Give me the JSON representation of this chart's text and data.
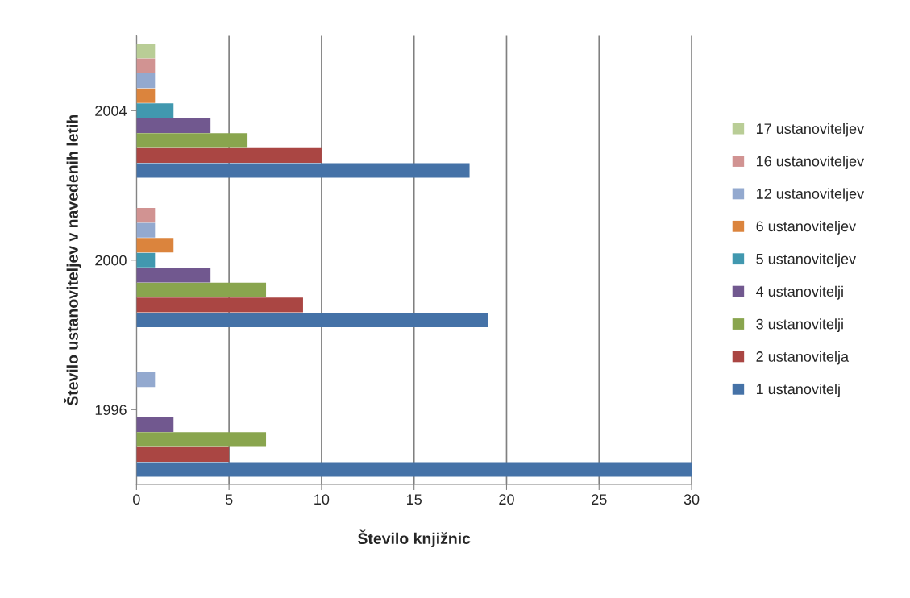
{
  "chart_data": {
    "type": "bar",
    "orientation": "horizontal",
    "xlabel": "Število knjižnic",
    "ylabel": "Število ustanoviteljev v navedenih letih",
    "categories": [
      "2004",
      "2000",
      "1996"
    ],
    "xlim": [
      0,
      30
    ],
    "xticks": [
      0,
      5,
      10,
      15,
      20,
      25,
      30
    ],
    "grid": "x",
    "legend": "right",
    "series": [
      {
        "name": "1 ustanovitelj",
        "color": "#4572a7",
        "values": [
          18,
          19,
          30
        ]
      },
      {
        "name": "2 ustanovitelja",
        "color": "#aa4643",
        "values": [
          10,
          9,
          5
        ]
      },
      {
        "name": "3 ustanovitelji",
        "color": "#89a54e",
        "values": [
          6,
          7,
          7
        ]
      },
      {
        "name": "4 ustanovitelji",
        "color": "#71588f",
        "values": [
          4,
          4,
          2
        ]
      },
      {
        "name": "5 ustanoviteljev",
        "color": "#4198af",
        "values": [
          2,
          1,
          0
        ]
      },
      {
        "name": "6 ustanoviteljev",
        "color": "#db843d",
        "values": [
          1,
          2,
          0
        ]
      },
      {
        "name": "12 ustanoviteljev",
        "color": "#93a9cf",
        "values": [
          1,
          1,
          1
        ]
      },
      {
        "name": "16 ustanoviteljev",
        "color": "#d19392",
        "values": [
          1,
          1,
          0
        ]
      },
      {
        "name": "17 ustanoviteljev",
        "color": "#b9cd96",
        "values": [
          1,
          0,
          0
        ]
      }
    ]
  }
}
